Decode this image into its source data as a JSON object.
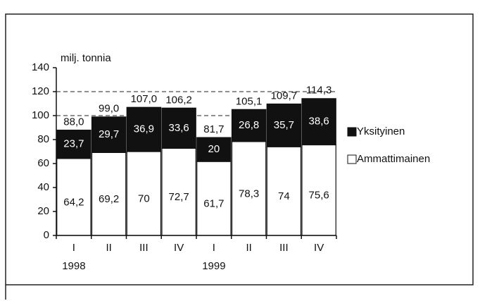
{
  "chart_data": {
    "type": "stacked_bar",
    "y_label": "milj. tonnia",
    "categories": [
      "I",
      "II",
      "III",
      "IV",
      "I",
      "II",
      "III",
      "IV"
    ],
    "years": [
      "1998",
      null,
      null,
      null,
      "1999",
      null,
      null,
      null
    ],
    "series": [
      {
        "name": "Ammattimainen",
        "color": "#ffffff",
        "values": [
          64.2,
          69.2,
          70,
          72.7,
          61.7,
          78.3,
          74,
          75.6
        ],
        "value_labels": [
          "64,2",
          "69,2",
          "70",
          "72,7",
          "61,7",
          "78,3",
          "74",
          "75,6"
        ]
      },
      {
        "name": "Yksityinen",
        "color": "#111111",
        "values": [
          23.7,
          29.7,
          36.9,
          33.6,
          20,
          26.8,
          35.7,
          38.6
        ],
        "value_labels": [
          "23,7",
          "29,7",
          "36,9",
          "33,6",
          "20",
          "26,8",
          "35,7",
          "38,6"
        ]
      }
    ],
    "totals": {
      "values": [
        88.0,
        99.0,
        107.0,
        106.2,
        81.7,
        105.1,
        109.7,
        114.3
      ],
      "value_labels": [
        "88,0",
        "99,0",
        "107,0",
        "106,2",
        "81,7",
        "105,1",
        "109,7",
        "114,3"
      ]
    },
    "ylim": [
      0,
      140
    ],
    "yticks": [
      0,
      20,
      40,
      60,
      80,
      100,
      120,
      140
    ],
    "gridlines": [
      100,
      120
    ],
    "legend": "right"
  }
}
